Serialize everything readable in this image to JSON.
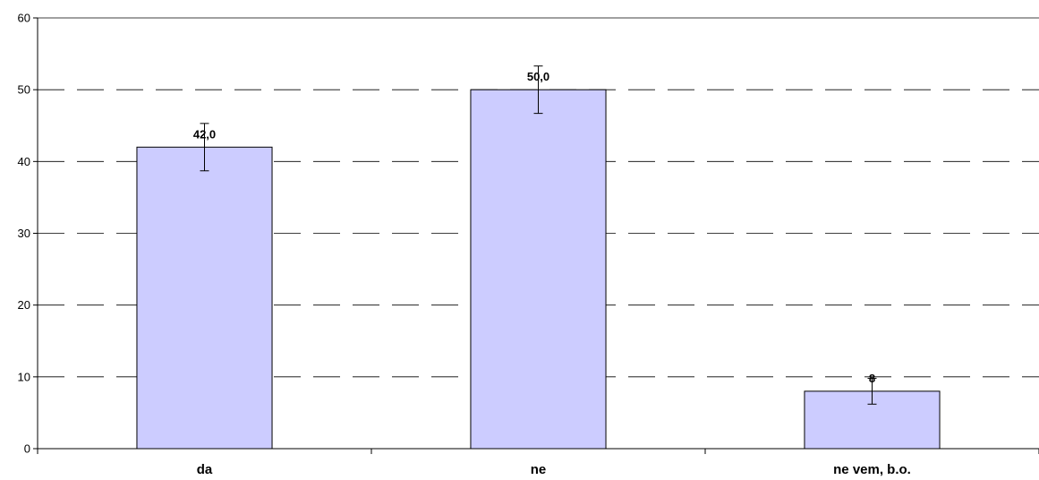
{
  "chart_data": {
    "type": "bar",
    "categories": [
      "da",
      "ne",
      "ne vem, b.o."
    ],
    "values": [
      42.0,
      50.0,
      8.0
    ],
    "data_labels": [
      "42,0",
      "50,0",
      "8"
    ],
    "error_bars": [
      3.3,
      3.3,
      1.8
    ],
    "ylim": [
      0,
      60
    ],
    "yticks": [
      0,
      10,
      20,
      30,
      40,
      50,
      60
    ],
    "grid": true,
    "grid_style": "dashed",
    "bar_color": "#ccccff",
    "bar_edge_color": "#000000",
    "title": "",
    "xlabel": "",
    "ylabel": ""
  }
}
